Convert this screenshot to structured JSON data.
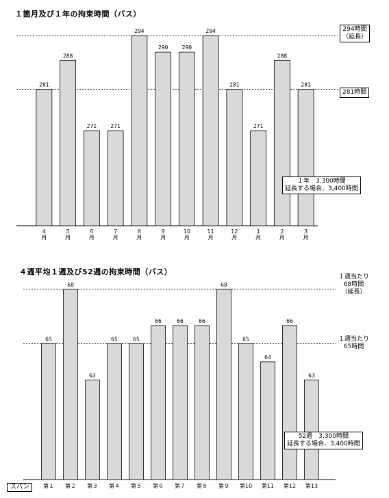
{
  "chart_data": [
    {
      "type": "bar",
      "title": "１箇月及び１年の拘束時間（バス）",
      "categories": [
        "４\n月",
        "５\n月",
        "６\n月",
        "７\n月",
        "８\n月",
        "９\n月",
        "10\n月",
        "11\n月",
        "12\n月",
        "１\n月",
        "２\n月",
        "３\n月"
      ],
      "values": [
        281,
        288,
        271,
        271,
        294,
        290,
        290,
        294,
        281,
        271,
        288,
        281
      ],
      "ylim": [
        248,
        294
      ],
      "reference_lines": [
        {
          "value": 294,
          "label": "294時間\n（延長）"
        },
        {
          "value": 281,
          "label": "281時間"
        }
      ],
      "annotation": "１年　3,300時間\n延長する場合、3,400時間",
      "bar_color": "#d9d9d9"
    },
    {
      "type": "bar",
      "title": "４週平均１週及び52週の拘束時間（バス）",
      "categories": [
        "第１",
        "第２",
        "第３",
        "第４",
        "第５",
        "第６",
        "第７",
        "第８",
        "第９",
        "第10",
        "第11",
        "第12",
        "第13"
      ],
      "values": [
        65,
        68,
        63,
        65,
        65,
        66,
        66,
        66,
        68,
        65,
        64,
        66,
        63
      ],
      "ylim": [
        57.5,
        68
      ],
      "reference_lines": [
        {
          "value": 68,
          "label": "１週当たり\n68時間\n（延長）"
        },
        {
          "value": 65,
          "label": "１週当たり\n65時間"
        }
      ],
      "annotation": "52週　3,300時間\n延長する場合、3,400時間",
      "axis_label_left": "スパン",
      "bar_color": "#d9d9d9"
    }
  ]
}
